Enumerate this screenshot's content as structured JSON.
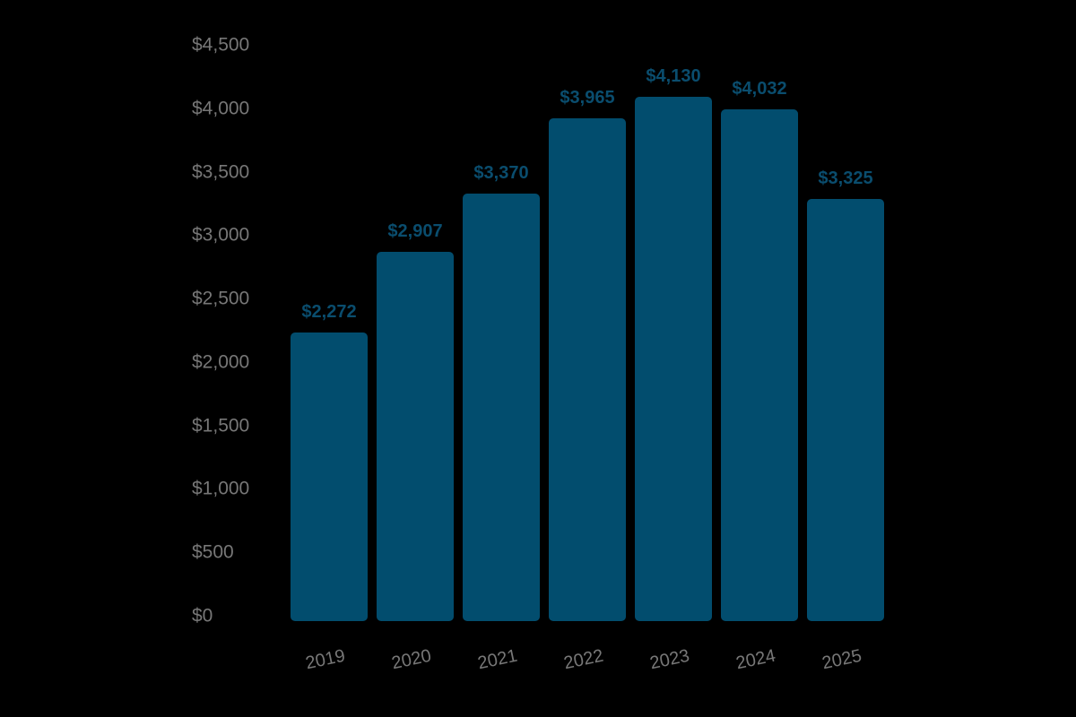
{
  "chart_data": {
    "type": "bar",
    "title": "",
    "xlabel": "",
    "ylabel": "",
    "categories": [
      "2019",
      "2020",
      "2021",
      "2022",
      "2023",
      "2024",
      "2025"
    ],
    "values": [
      2272,
      2907,
      3370,
      3965,
      4130,
      4032,
      3325
    ],
    "value_labels": [
      "$2,272",
      "$2,907",
      "$3,370",
      "$3,965",
      "$4,130",
      "$4,032",
      "$3,325"
    ],
    "ylim": [
      0,
      4500
    ],
    "yticks": [
      "$0",
      "$500",
      "$1,000",
      "$1,500",
      "$2,000",
      "$2,500",
      "$3,000",
      "$3,500",
      "$4,000",
      "$4,500"
    ],
    "grid": false,
    "legend": null,
    "bar_color": "#024d6e",
    "label_color": "#0a4d6e",
    "axis_text_color": "#777777"
  }
}
